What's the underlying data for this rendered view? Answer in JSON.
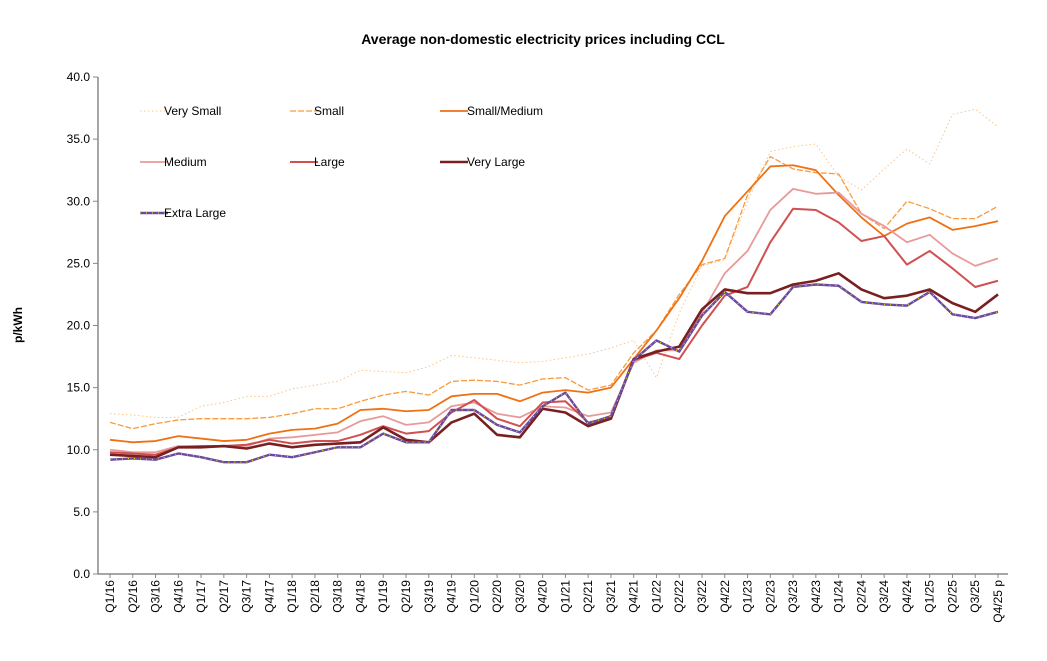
{
  "chart_data": {
    "type": "line",
    "title": "Average non-domestic electricity prices including CCL",
    "xlabel": "",
    "ylabel": "p/kWh",
    "ylim": [
      0,
      40
    ],
    "yticks": [
      "0.0",
      "5.0",
      "10.0",
      "15.0",
      "20.0",
      "25.0",
      "30.0",
      "35.0",
      "40.0"
    ],
    "grid": false,
    "legend_placement": "top-left inside",
    "categories": [
      "Q1/16",
      "Q2/16",
      "Q3/16",
      "Q4/16",
      "Q1/17",
      "Q2/17",
      "Q3/17",
      "Q4/17",
      "Q1/18",
      "Q2/18",
      "Q3/18",
      "Q4/18",
      "Q1/19",
      "Q2/19",
      "Q3/19",
      "Q4/19",
      "Q1/20",
      "Q2/20",
      "Q3/20",
      "Q4/20",
      "Q1/21",
      "Q2/21",
      "Q3/21",
      "Q4/21",
      "Q1/22",
      "Q2/22",
      "Q3/22",
      "Q4/22",
      "Q1/23",
      "Q2/23",
      "Q3/23",
      "Q4/23",
      "Q1/24",
      "Q2/24",
      "Q3/24",
      "Q4/24",
      "Q1/25",
      "Q2/25",
      "Q3/25",
      "Q4/25 p"
    ],
    "series": [
      {
        "name": "Very Small",
        "color": "#fbc58a",
        "style": "dotted",
        "values": [
          12.9,
          12.8,
          12.6,
          12.6,
          13.5,
          13.8,
          14.3,
          14.3,
          14.9,
          15.2,
          15.5,
          16.4,
          16.3,
          16.2,
          16.7,
          17.6,
          17.4,
          17.2,
          17.0,
          17.1,
          17.4,
          17.7,
          18.2,
          18.8,
          15.8,
          21.0,
          24.8,
          25.3,
          30.0,
          34.0,
          34.4,
          34.6,
          32.0,
          30.9,
          32.6,
          34.2,
          33.0,
          37.0,
          37.4,
          36.0
        ]
      },
      {
        "name": "Small",
        "color": "#f79b3c",
        "style": "dashed",
        "values": [
          12.2,
          11.7,
          12.1,
          12.4,
          12.5,
          12.5,
          12.5,
          12.6,
          12.9,
          13.3,
          13.3,
          13.9,
          14.4,
          14.7,
          14.4,
          15.5,
          15.6,
          15.5,
          15.2,
          15.7,
          15.8,
          14.8,
          15.2,
          17.8,
          19.6,
          22.5,
          24.9,
          25.4,
          30.5,
          33.6,
          32.6,
          32.3,
          32.2,
          29.0,
          27.8,
          30.0,
          29.4,
          28.6,
          28.6,
          29.6
        ]
      },
      {
        "name": "Small/Medium",
        "color": "#f07014",
        "style": "solid",
        "values": [
          10.8,
          10.6,
          10.7,
          11.1,
          10.9,
          10.7,
          10.8,
          11.3,
          11.6,
          11.7,
          12.1,
          13.2,
          13.3,
          13.1,
          13.2,
          14.3,
          14.5,
          14.5,
          13.9,
          14.6,
          14.8,
          14.6,
          15.0,
          17.3,
          19.6,
          22.2,
          25.2,
          28.8,
          30.8,
          32.8,
          32.9,
          32.5,
          30.5,
          28.7,
          27.2,
          28.2,
          28.7,
          27.7,
          28.0,
          28.4
        ]
      },
      {
        "name": "Medium",
        "color": "#e89a9a",
        "style": "solid",
        "values": [
          10.0,
          9.8,
          9.8,
          10.3,
          10.3,
          10.3,
          10.3,
          10.9,
          11.0,
          11.2,
          11.4,
          12.3,
          12.7,
          12.0,
          12.2,
          13.5,
          13.8,
          12.9,
          12.6,
          13.5,
          13.4,
          12.7,
          13.0,
          17.0,
          18.0,
          18.0,
          21.0,
          24.2,
          26.0,
          29.3,
          31.0,
          30.6,
          30.7,
          29.0,
          28.0,
          26.7,
          27.3,
          25.8,
          24.8,
          25.4
        ]
      },
      {
        "name": "Large",
        "color": "#d05050",
        "style": "solid",
        "values": [
          9.8,
          9.7,
          9.6,
          10.2,
          10.3,
          10.3,
          10.4,
          10.8,
          10.5,
          10.7,
          10.7,
          11.2,
          11.9,
          11.3,
          11.5,
          13.0,
          14.0,
          12.5,
          11.9,
          13.8,
          13.9,
          12.2,
          12.6,
          17.2,
          17.8,
          17.3,
          20.0,
          22.4,
          23.1,
          26.7,
          29.4,
          29.3,
          28.3,
          26.8,
          27.2,
          24.9,
          26.0,
          24.6,
          23.1,
          23.6
        ]
      },
      {
        "name": "Very Large",
        "color": "#7a1f1f",
        "style": "solid",
        "values": [
          9.6,
          9.5,
          9.4,
          10.2,
          10.2,
          10.3,
          10.1,
          10.5,
          10.2,
          10.4,
          10.5,
          10.6,
          11.8,
          10.8,
          10.6,
          12.2,
          12.9,
          11.2,
          11.0,
          13.3,
          13.0,
          11.9,
          12.5,
          17.3,
          17.9,
          18.3,
          21.3,
          22.9,
          22.6,
          22.6,
          23.3,
          23.6,
          24.2,
          22.9,
          22.2,
          22.4,
          22.9,
          21.8,
          21.1,
          22.5
        ]
      },
      {
        "name": "Extra Large",
        "color": "#6a4aa0",
        "style": "solid-yellow-dots",
        "values": [
          9.2,
          9.3,
          9.2,
          9.7,
          9.4,
          9.0,
          9.0,
          9.6,
          9.4,
          9.8,
          10.2,
          10.2,
          11.3,
          10.6,
          10.6,
          13.2,
          13.2,
          12.0,
          11.4,
          13.5,
          14.6,
          12.1,
          12.7,
          17.2,
          18.8,
          17.9,
          20.8,
          22.7,
          21.1,
          20.9,
          23.1,
          23.3,
          23.2,
          21.9,
          21.7,
          21.6,
          22.7,
          20.9,
          20.6,
          21.1
        ]
      }
    ]
  }
}
